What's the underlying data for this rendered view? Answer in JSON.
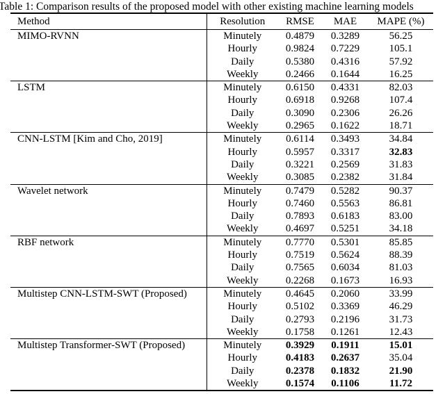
{
  "title": "Table 1: Comparison results of the proposed model with other existing machine learning models",
  "colors": {
    "text": "#000000",
    "background": "#ffffff",
    "rule": "#000000"
  },
  "table": {
    "headers": {
      "method": "Method",
      "resolution": "Resolution",
      "rmse": "RMSE",
      "mae": "MAE",
      "mape": "MAPE (%)"
    },
    "groups": [
      {
        "method": "MIMO-RVNN",
        "rows": [
          {
            "resolution": "Minutely",
            "rmse": "0.4879",
            "mae": "0.3289",
            "mape": "56.25",
            "bold": []
          },
          {
            "resolution": "Hourly",
            "rmse": "0.9824",
            "mae": "0.7229",
            "mape": "105.1",
            "bold": []
          },
          {
            "resolution": "Daily",
            "rmse": "0.5380",
            "mae": "0.4316",
            "mape": "57.92",
            "bold": []
          },
          {
            "resolution": "Weekly",
            "rmse": "0.2466",
            "mae": "0.1644",
            "mape": "16.25",
            "bold": []
          }
        ]
      },
      {
        "method": "LSTM",
        "rows": [
          {
            "resolution": "Minutely",
            "rmse": "0.6150",
            "mae": "0.4331",
            "mape": "82.03",
            "bold": []
          },
          {
            "resolution": "Hourly",
            "rmse": "0.6918",
            "mae": "0.9268",
            "mape": "107.4",
            "bold": []
          },
          {
            "resolution": "Daily",
            "rmse": "0.3090",
            "mae": "0.2306",
            "mape": "26.26",
            "bold": []
          },
          {
            "resolution": "Weekly",
            "rmse": "0.2965",
            "mae": "0.1622",
            "mape": "18.71",
            "bold": []
          }
        ]
      },
      {
        "method": "CNN-LSTM [Kim and Cho, 2019]",
        "rows": [
          {
            "resolution": "Minutely",
            "rmse": "0.6114",
            "mae": "0.3493",
            "mape": "34.84",
            "bold": []
          },
          {
            "resolution": "Hourly",
            "rmse": "0.5957",
            "mae": "0.3317",
            "mape": "32.83",
            "bold": [
              "mape"
            ]
          },
          {
            "resolution": "Daily",
            "rmse": "0.3221",
            "mae": "0.2569",
            "mape": "31.83",
            "bold": []
          },
          {
            "resolution": "Weekly",
            "rmse": "0.3085",
            "mae": "0.2382",
            "mape": "31.84",
            "bold": []
          }
        ]
      },
      {
        "method": "Wavelet network",
        "rows": [
          {
            "resolution": "Minutely",
            "rmse": "0.7479",
            "mae": "0.5282",
            "mape": "90.37",
            "bold": []
          },
          {
            "resolution": "Hourly",
            "rmse": "0.7460",
            "mae": "0.5563",
            "mape": "86.81",
            "bold": []
          },
          {
            "resolution": "Daily",
            "rmse": "0.7893",
            "mae": "0.6183",
            "mape": "83.00",
            "bold": []
          },
          {
            "resolution": "Weekly",
            "rmse": "0.4697",
            "mae": "0.5251",
            "mape": "34.18",
            "bold": []
          }
        ]
      },
      {
        "method": "RBF network",
        "rows": [
          {
            "resolution": "Minutely",
            "rmse": "0.7770",
            "mae": "0.5301",
            "mape": "85.85",
            "bold": []
          },
          {
            "resolution": "Hourly",
            "rmse": "0.7519",
            "mae": "0.5624",
            "mape": "88.39",
            "bold": []
          },
          {
            "resolution": "Daily",
            "rmse": "0.7565",
            "mae": "0.6034",
            "mape": "81.03",
            "bold": []
          },
          {
            "resolution": "Weekly",
            "rmse": "0.2268",
            "mae": "0.1673",
            "mape": "16.93",
            "bold": []
          }
        ]
      },
      {
        "method": "Multistep CNN-LSTM-SWT (Proposed)",
        "rows": [
          {
            "resolution": "Minutely",
            "rmse": "0.4645",
            "mae": "0.2060",
            "mape": "33.99",
            "bold": []
          },
          {
            "resolution": "Hourly",
            "rmse": "0.5102",
            "mae": "0.3369",
            "mape": "46.29",
            "bold": []
          },
          {
            "resolution": "Daily",
            "rmse": "0.2793",
            "mae": "0.2196",
            "mape": "31.73",
            "bold": []
          },
          {
            "resolution": "Weekly",
            "rmse": "0.1758",
            "mae": "0.1261",
            "mape": "12.43",
            "bold": []
          }
        ]
      },
      {
        "method": "Multistep Transformer-SWT (Proposed)",
        "rows": [
          {
            "resolution": "Minutely",
            "rmse": "0.3929",
            "mae": "0.1911",
            "mape": "15.01",
            "bold": [
              "rmse",
              "mae",
              "mape"
            ]
          },
          {
            "resolution": "Hourly",
            "rmse": "0.4183",
            "mae": "0.2637",
            "mape": "35.04",
            "bold": [
              "rmse",
              "mae"
            ]
          },
          {
            "resolution": "Daily",
            "rmse": "0.2378",
            "mae": "0.1832",
            "mape": "21.90",
            "bold": [
              "rmse",
              "mae",
              "mape"
            ]
          },
          {
            "resolution": "Weekly",
            "rmse": "0.1574",
            "mae": "0.1106",
            "mape": "11.72",
            "bold": [
              "rmse",
              "mae",
              "mape"
            ]
          }
        ]
      }
    ]
  }
}
